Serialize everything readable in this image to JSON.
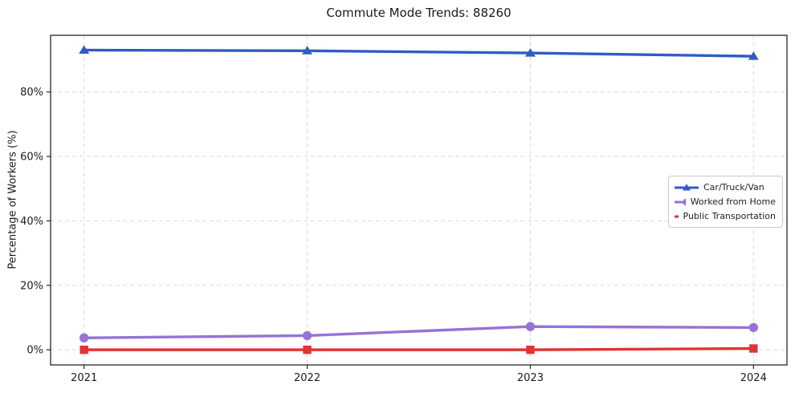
{
  "page": {
    "background": "#ffffff"
  },
  "chart_data": {
    "type": "line",
    "title": "Commute Mode Trends: 88260",
    "xlabel": "",
    "ylabel": "Percentage of Workers (%)",
    "x": [
      2021,
      2022,
      2023,
      2024
    ],
    "x_tick_labels": [
      "2021",
      "2022",
      "2023",
      "2024"
    ],
    "y_ticks": [
      0,
      20,
      40,
      60,
      80
    ],
    "y_tick_labels": [
      "0%",
      "20%",
      "40%",
      "60%",
      "80%"
    ],
    "xlim": [
      2020.85,
      2024.15
    ],
    "ylim": [
      -4.7,
      97.6
    ],
    "grid": true,
    "grid_style": "dashed",
    "legend_position": "center-right",
    "colors": {
      "grid": "#d9d9d9",
      "spine": "#262626",
      "tick_text": "#1a1a1a"
    },
    "series": [
      {
        "name": "Car/Truck/Van",
        "color": "#2e5cc5",
        "marker": "triangle",
        "values": [
          93.0,
          92.8,
          92.1,
          91.1
        ]
      },
      {
        "name": "Worked from Home",
        "color": "#9673d6",
        "marker": "circle",
        "values": [
          3.7,
          4.4,
          7.2,
          6.9
        ]
      },
      {
        "name": "Public Transportation",
        "color": "#e03434",
        "marker": "square",
        "values": [
          0.0,
          0.0,
          0.0,
          0.4
        ]
      }
    ]
  }
}
